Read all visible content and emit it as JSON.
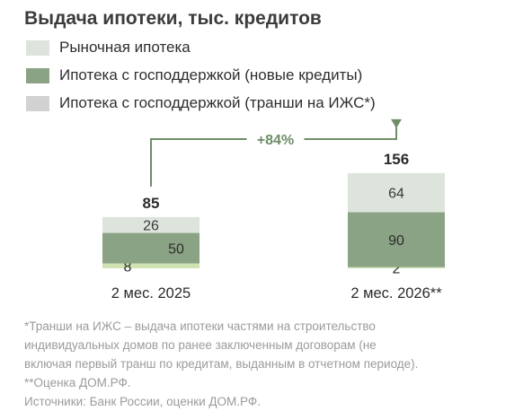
{
  "title": "Выдача ипотеки, тыс. кредитов",
  "colors": {
    "market": "#dde4dc",
    "gov_new": "#8ba385",
    "tranches": "#cfe2b2",
    "arrow": "#6e8e67"
  },
  "chart_data": {
    "type": "bar",
    "stacked": true,
    "categories": [
      "2 мес. 2025",
      "2 мес. 2026**"
    ],
    "series": [
      {
        "name": "Ипотека с господдержкой (транши на ИЖС*)",
        "values": [
          8,
          2
        ]
      },
      {
        "name": "Ипотека с господдержкой (новые кредиты)",
        "values": [
          50,
          90
        ]
      },
      {
        "name": "Рыночная ипотека",
        "values": [
          26,
          64
        ]
      }
    ],
    "totals": [
      85,
      156
    ],
    "growth_label": "+84%",
    "legend_position": "top-left",
    "grid": false
  },
  "footnotes": [
    "*Транши на ИЖС – выдача ипотеки частями на строительство",
    "индивидуальных домов по ранее заключенным договорам (не",
    "включая первый транш по кредитам, выданным в отчетном периоде).",
    "**Оценка ДОМ.РФ.",
    "Источники: Банк России, оценки ДОМ.РФ."
  ]
}
